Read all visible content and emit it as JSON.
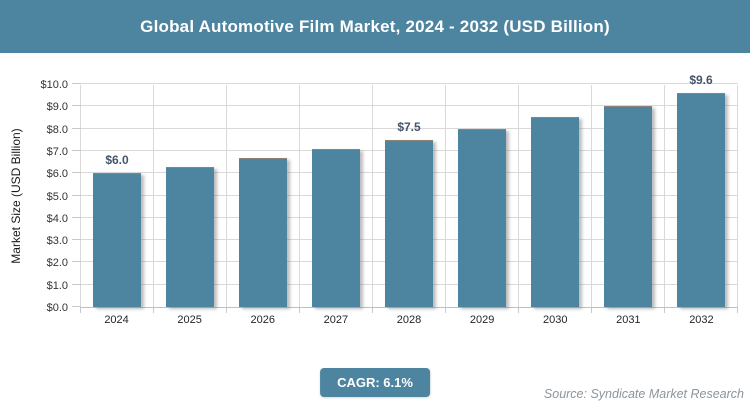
{
  "header": {
    "title": "Global Automotive Film Market, 2024 - 2032 (USD Billion)"
  },
  "chart_data": {
    "type": "bar",
    "title": "Global Automotive Film Market, 2024 - 2032 (USD Billion)",
    "categories": [
      "2024",
      "2025",
      "2026",
      "2027",
      "2028",
      "2029",
      "2030",
      "2031",
      "2032"
    ],
    "values": [
      6.0,
      6.3,
      6.7,
      7.1,
      7.5,
      8.0,
      8.5,
      9.0,
      9.6
    ],
    "data_labels": [
      "$6.0",
      "",
      "",
      "",
      "$7.5",
      "",
      "",
      "",
      "$9.6"
    ],
    "xlabel": "",
    "ylabel": "Market Size (USD Billion)",
    "ylim": [
      0,
      10
    ],
    "ytick_step": 1.0,
    "ytick_labels": [
      "$0.0",
      "$1.0",
      "$2.0",
      "$3.0",
      "$4.0",
      "$5.0",
      "$6.0",
      "$7.0",
      "$8.0",
      "$9.0",
      "$10.0"
    ],
    "grid": true,
    "legend_position": "none"
  },
  "footer": {
    "cagr_label": "CAGR: 6.1%",
    "source": "Source: Syndicate Market Research"
  },
  "colors": {
    "accent_teal": "#4D84A0",
    "bar_fill": "#4D84A0",
    "header_text": "#FFFFFF",
    "data_label": "#44546A",
    "gridline": "#D9D9D9",
    "axis_line": "#BFBFBF",
    "tick_text": "#333333",
    "source_text": "#8B959C"
  }
}
